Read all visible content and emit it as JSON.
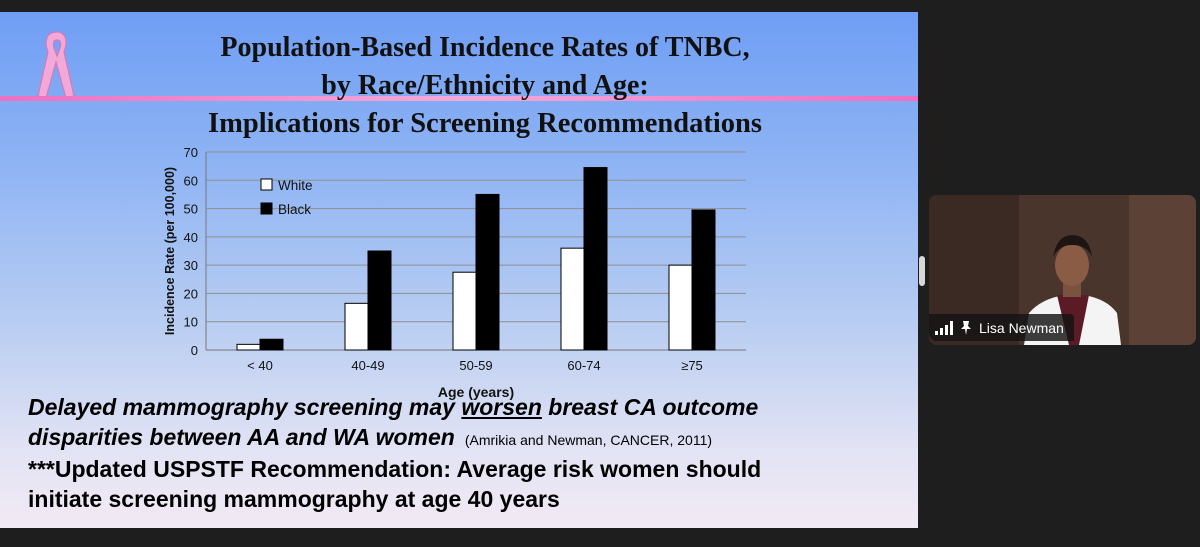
{
  "slide": {
    "title_lines": [
      "Population-Based Incidence Rates of TNBC,",
      "by Race/Ethnicity and Age:",
      "Implications for Screening Recommendations"
    ],
    "body_line1_pre": "Delayed mammography screening may ",
    "body_line1_emph": "worsen",
    "body_line1_post": " breast CA outcome",
    "body_line2": "disparities between AA and WA women",
    "citation": "(Amrikia and Newman, CANCER, 2011)",
    "body_line3": "***Updated USPSTF Recommendation: Average risk women should",
    "body_line4": "initiate screening mammography at age 40 years"
  },
  "chart_data": {
    "type": "bar",
    "categories": [
      "< 40",
      "40-49",
      "50-59",
      "60-74",
      "≥75"
    ],
    "series": [
      {
        "name": "White",
        "values": [
          2,
          16.5,
          27.5,
          36,
          30
        ],
        "color": "#ffffff"
      },
      {
        "name": "Black",
        "values": [
          3.8,
          35,
          55,
          64.5,
          49.5
        ],
        "color": "#000000"
      }
    ],
    "xlabel": "Age (years)",
    "ylabel": "Incidence Rate (per 100,000)",
    "ylim": [
      0,
      70
    ],
    "yticks": [
      0,
      10,
      20,
      30,
      40,
      50,
      60,
      70
    ],
    "grid": true,
    "legend_position": "top-left"
  },
  "participant": {
    "name": "Lisa Newman",
    "icons": [
      "signal-icon",
      "pin-icon"
    ]
  }
}
